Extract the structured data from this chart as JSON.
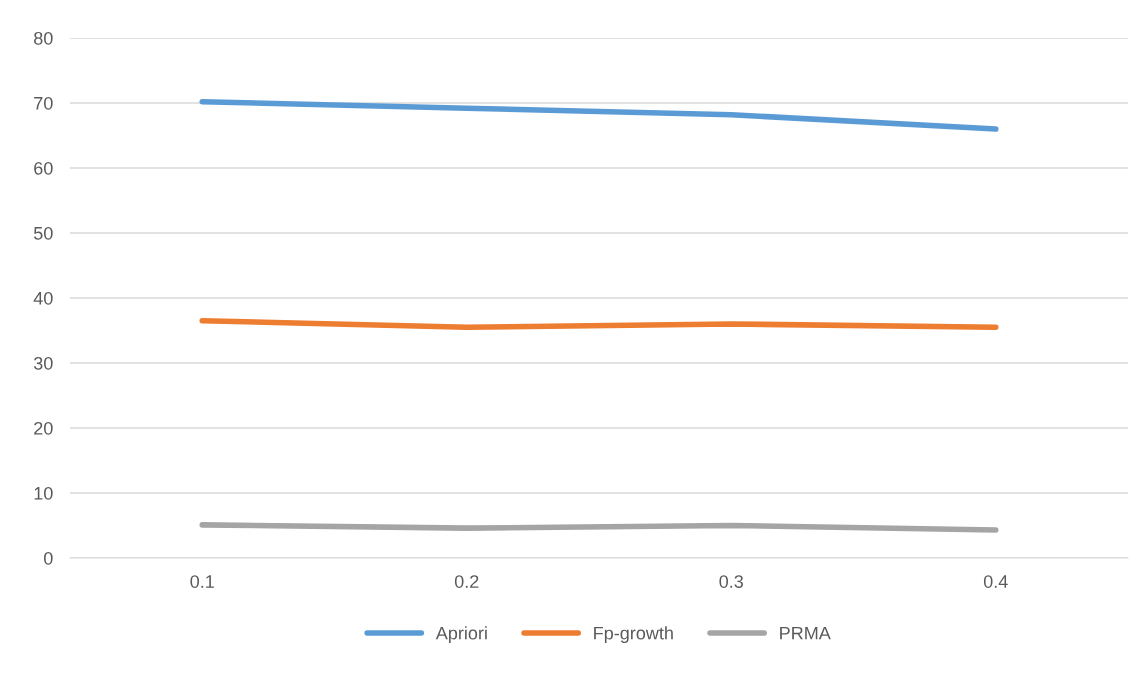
{
  "chart_data": {
    "type": "line",
    "categories": [
      "0.1",
      "0.2",
      "0.3",
      "0.4"
    ],
    "series": [
      {
        "name": "Apriori",
        "color": "#5b9bd5",
        "values": [
          70.2,
          69.2,
          68.2,
          66.0
        ]
      },
      {
        "name": "Fp-growth",
        "color": "#ed7d31",
        "values": [
          36.5,
          35.5,
          36.0,
          35.5
        ]
      },
      {
        "name": "PRMA",
        "color": "#a5a5a5",
        "values": [
          5.1,
          4.6,
          5.0,
          4.3
        ]
      }
    ],
    "ylim": [
      0,
      80
    ],
    "yticks": [
      0,
      10,
      20,
      30,
      40,
      50,
      60,
      70,
      80
    ],
    "grid": "y",
    "legend": "bottom",
    "marker": "none",
    "line_style": "solid"
  }
}
